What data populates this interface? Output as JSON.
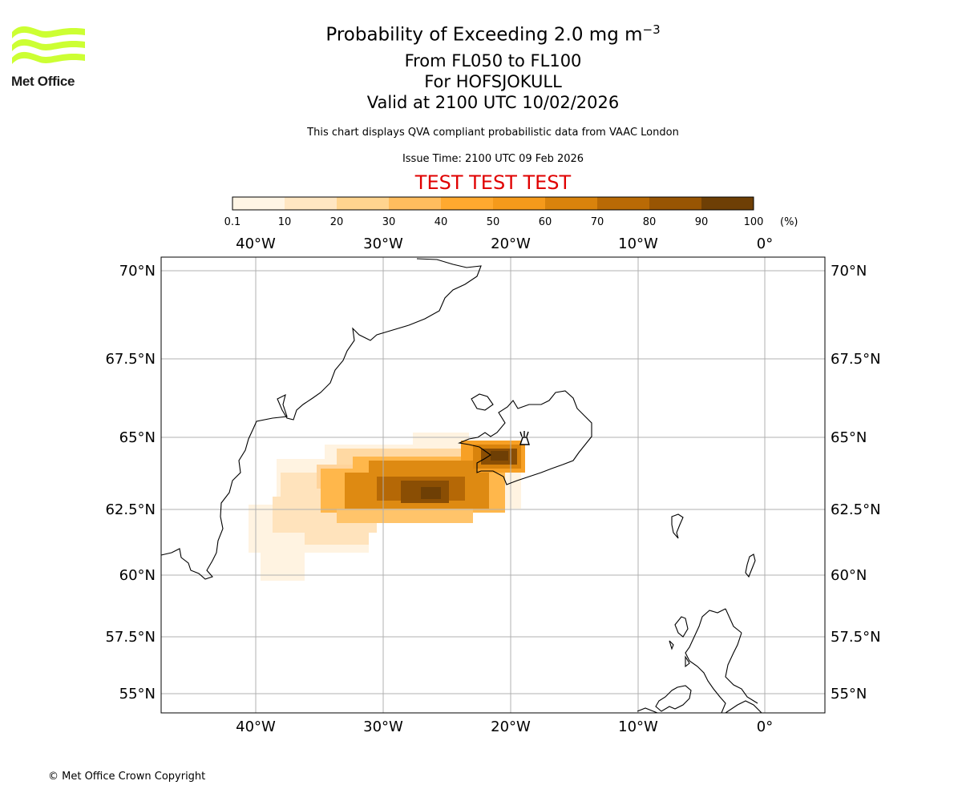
{
  "logo": {
    "text": "Met Office",
    "color": "#ccff33"
  },
  "title": {
    "line1": "Probability of Exceeding 2.0 mg m",
    "line1_sup": "−3",
    "line2": "From FL050 to FL100",
    "line3": "For HOFSJOKULL",
    "line4": "Valid at 2100 UTC 10/02/2026"
  },
  "subtitle": "This chart displays QVA compliant probabilistic data from VAAC London",
  "issue_time": "Issue Time: 2100 UTC 09 Feb 2026",
  "test_banner": {
    "text": "TEST TEST TEST",
    "color": "#e00000"
  },
  "colorbar": {
    "ticks": [
      "0.1",
      "10",
      "20",
      "30",
      "40",
      "50",
      "60",
      "70",
      "80",
      "90",
      "100"
    ],
    "unit": "(%)",
    "colors": [
      "#fff5e5",
      "#ffe6c2",
      "#ffd48f",
      "#ffbd5e",
      "#ffa92f",
      "#f59a1b",
      "#d9830c",
      "#b96a05",
      "#985503",
      "#6e3f05"
    ]
  },
  "map": {
    "lon_labels": [
      "40°W",
      "30°W",
      "20°W",
      "10°W",
      "0°"
    ],
    "lat_labels": [
      "70°N",
      "67.5°N",
      "65°N",
      "62.5°N",
      "60°N",
      "57.5°N",
      "55°N"
    ],
    "volcano_icon": "volcano-icon",
    "grid": true
  },
  "copyright": "© Met Office Crown Copyright"
}
